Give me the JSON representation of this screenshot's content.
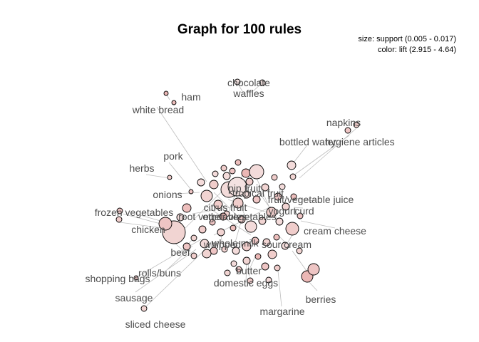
{
  "title": "Graph for 100 rules",
  "legend": {
    "size_text": "size: support (0.005 - 0.017)",
    "color_text": "color: lift (2.915 - 4.64)"
  },
  "colors": {
    "low_lift": "#f7f0f0",
    "high_lift": "#e8a9a6",
    "edge": "#bdbdbd",
    "label": "#4d4d4d"
  },
  "items": [
    {
      "text": "chocolate"
    },
    {
      "text": "waffles"
    },
    {
      "text": "ham"
    },
    {
      "text": "white bread"
    },
    {
      "text": "napkins"
    },
    {
      "text": "bottled water"
    },
    {
      "text": "hygiene articles"
    },
    {
      "text": "pork"
    },
    {
      "text": "herbs"
    },
    {
      "text": "pip fruit"
    },
    {
      "text": "tropical fruit"
    },
    {
      "text": "onions"
    },
    {
      "text": "fruit/vegetable juice"
    },
    {
      "text": "citrus fruit"
    },
    {
      "text": "yogurt"
    },
    {
      "text": "curd"
    },
    {
      "text": "frozen vegetables"
    },
    {
      "text": "root vegetables"
    },
    {
      "text": "other vegetables"
    },
    {
      "text": "chicken"
    },
    {
      "text": "cream cheese"
    },
    {
      "text": "whole milk"
    },
    {
      "text": "sour cream"
    },
    {
      "text": "whipped"
    },
    {
      "text": "beef"
    },
    {
      "text": "rolls/buns"
    },
    {
      "text": "butter"
    },
    {
      "text": "shopping bags"
    },
    {
      "text": "domestic eggs"
    },
    {
      "text": "berries"
    },
    {
      "text": "sausage"
    },
    {
      "text": "margarine"
    },
    {
      "text": "sliced cheese"
    }
  ]
}
